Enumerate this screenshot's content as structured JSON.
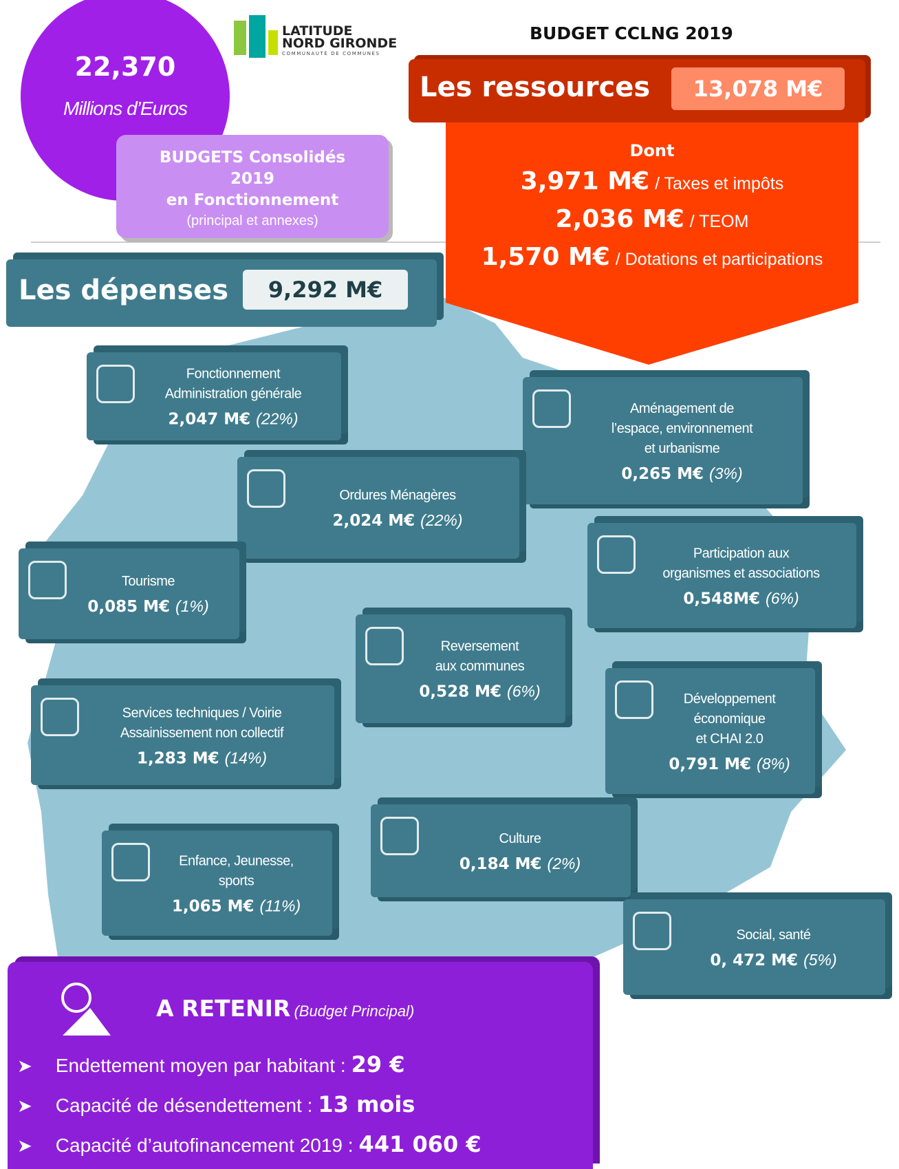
{
  "header": {
    "total_value": "22,370",
    "total_unit": "Millions d’Euros",
    "logo_line1": "LATITUDE",
    "logo_line2": "NORD GIRONDE",
    "logo_sub": "COMMUNAUTÉ DE COMMUNES",
    "title": "BUDGET CCLNG 2019"
  },
  "consolidated": {
    "line1": "BUDGETS Consolidés",
    "line2": "2019",
    "line3": "en Fonctionnement",
    "line4": "(principal et annexes)"
  },
  "resources": {
    "label": "Les ressources",
    "amount": "13,078 M€",
    "intro": "Dont",
    "items": [
      {
        "amount": "3,971 M€",
        "label": "/ Taxes et impôts"
      },
      {
        "amount": "2,036 M€",
        "label": "/ TEOM"
      },
      {
        "amount": "1,570 M€",
        "label": "/ Dotations et participations"
      }
    ]
  },
  "expenses": {
    "label": "Les dépenses",
    "amount": "9,292 M€",
    "items": [
      {
        "lines": [
          "Fonctionnement",
          "Administration générale"
        ],
        "amount": "2,047 M€",
        "share": "(22%)"
      },
      {
        "lines": [
          "Aménagement de",
          "l’espace, environnement",
          "et urbanisme"
        ],
        "amount": "0,265 M€",
        "share": "(3%)"
      },
      {
        "lines": [
          "Ordures Ménagères"
        ],
        "amount": "2,024 M€",
        "share": "(22%)"
      },
      {
        "lines": [
          "Participation aux",
          "organismes et associations"
        ],
        "amount": "0,548M€",
        "share": "(6%)"
      },
      {
        "lines": [
          "Tourisme"
        ],
        "amount": "0,085 M€",
        "share": "(1%)"
      },
      {
        "lines": [
          "Reversement",
          "aux communes"
        ],
        "amount": "0,528 M€",
        "share": "(6%)"
      },
      {
        "lines": [
          "Services techniques / Voirie",
          "Assainissement non collectif"
        ],
        "amount": "1,283 M€",
        "share": "(14%)"
      },
      {
        "lines": [
          "Développement",
          "économique",
          "et CHAI 2.0"
        ],
        "amount": "0,791 M€",
        "share": "(8%)"
      },
      {
        "lines": [
          "Culture"
        ],
        "amount": "0,184 M€",
        "share": "(2%)"
      },
      {
        "lines": [
          "Enfance, Jeunesse,",
          "sports"
        ],
        "amount": "1,065 M€",
        "share": "(11%)"
      },
      {
        "lines": [
          "Social, santé"
        ],
        "amount": "0, 472 M€",
        "share": "(5%)"
      }
    ]
  },
  "retain": {
    "title": "A RETENIR",
    "subtitle": "(Budget Principal)",
    "items": [
      {
        "label": "Endettement moyen par habitant :",
        "value": "29 €"
      },
      {
        "label": "Capacité de désendettement :",
        "value": "13 mois"
      },
      {
        "label": "Capacité d’autofinancement 2019 :",
        "value": "441 060 €"
      }
    ]
  }
}
